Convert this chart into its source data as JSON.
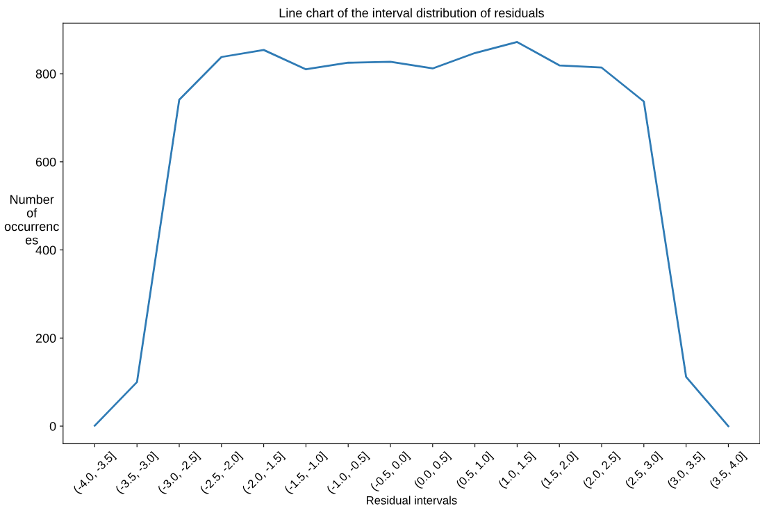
{
  "chart_data": {
    "type": "line",
    "title": "Line chart of the interval distribution of residuals",
    "xlabel": "Residual intervals",
    "ylabel": "Number\nof\noccurrenc\nes",
    "categories": [
      "(-4.0, -3.5]",
      "(-3.5, -3.0]",
      "(-3.0, -2.5]",
      "(-2.5, -2.0]",
      "(-2.0, -1.5]",
      "(-1.5, -1.0]",
      "(-1.0, -0.5]",
      "(-0.5, 0.0]",
      "(0.0, 0.5]",
      "(0.5, 1.0]",
      "(1.0, 1.5]",
      "(1.5, 2.0]",
      "(2.0, 2.5]",
      "(2.5, 3.0]",
      "(3.0, 3.5]",
      "(3.5, 4.0]"
    ],
    "series": [
      {
        "color": "#2f7bb5",
        "values": [
          1,
          100,
          741,
          838,
          854,
          810,
          825,
          827,
          812,
          847,
          872,
          819,
          814,
          737,
          112,
          0
        ]
      }
    ],
    "ylim": [
      -40,
      915
    ],
    "yticks": [
      0,
      200,
      400,
      600,
      800
    ],
    "grid": false,
    "marker": "none",
    "line_style": "solid"
  }
}
